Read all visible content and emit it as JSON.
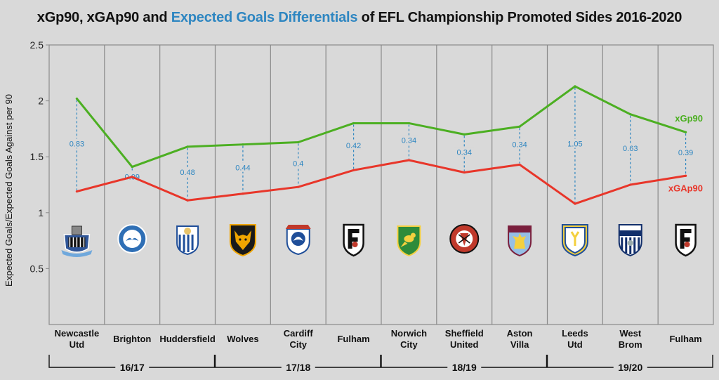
{
  "title": {
    "part1": "xGp90, xGAp90 and ",
    "highlight": "Expected Goals Differentials",
    "part2": " of EFL Championship Promoted Sides 2016-2020"
  },
  "colors": {
    "xg": "#4caf22",
    "xga": "#e8362a",
    "diff": "#2e86c1",
    "grid": "#8a8a8a"
  },
  "chart_data": {
    "type": "line",
    "title": "xGp90, xGAp90 and Expected Goals Differentials of EFL Championship Promoted Sides 2016-2020",
    "ylabel": "Expected Goals/Expected Goals Against per 90",
    "xlabel": "",
    "ylim": [
      0,
      2.5
    ],
    "yticks": [
      "0.5",
      "1",
      "1.5",
      "2",
      "2.5"
    ],
    "grid": true,
    "categories": [
      {
        "line1": "Newcastle",
        "line2": "Utd",
        "crest": "newcastle-crest"
      },
      {
        "line1": "Brighton",
        "line2": "",
        "crest": "brighton-crest"
      },
      {
        "line1": "Huddersfield",
        "line2": "",
        "crest": "huddersfield-crest"
      },
      {
        "line1": "Wolves",
        "line2": "",
        "crest": "wolves-crest"
      },
      {
        "line1": "Cardiff",
        "line2": "City",
        "crest": "cardiff-crest"
      },
      {
        "line1": "Fulham",
        "line2": "",
        "crest": "fulham-crest"
      },
      {
        "line1": "Norwich",
        "line2": "City",
        "crest": "norwich-crest"
      },
      {
        "line1": "Sheffield",
        "line2": "United",
        "crest": "sheffield-united-crest"
      },
      {
        "line1": "Aston",
        "line2": "Villa",
        "crest": "aston-villa-crest"
      },
      {
        "line1": "Leeds",
        "line2": "Utd",
        "crest": "leeds-crest"
      },
      {
        "line1": "West",
        "line2": "Brom",
        "crest": "west-brom-crest"
      },
      {
        "line1": "Fulham",
        "line2": "",
        "crest": "fulham-crest"
      }
    ],
    "groups": [
      {
        "label": "16/17",
        "start": 0,
        "end": 2
      },
      {
        "label": "17/18",
        "start": 3,
        "end": 5
      },
      {
        "label": "18/19",
        "start": 6,
        "end": 8
      },
      {
        "label": "19/20",
        "start": 9,
        "end": 11
      }
    ],
    "series": [
      {
        "name": "xGp90",
        "color": "#4caf22",
        "values": [
          2.02,
          1.41,
          1.59,
          1.61,
          1.63,
          1.8,
          1.8,
          1.7,
          1.77,
          2.13,
          1.88,
          1.72
        ]
      },
      {
        "name": "xGAp90",
        "color": "#e8362a",
        "values": [
          1.19,
          1.32,
          1.11,
          1.17,
          1.23,
          1.38,
          1.47,
          1.36,
          1.43,
          1.08,
          1.25,
          1.33
        ]
      }
    ],
    "differentials": [
      "0.83",
      "0.09",
      "0.48",
      "0.44",
      "0.4",
      "0.42",
      "0.34",
      "0.34",
      "0.34",
      "1.05",
      "0.63",
      "0.39"
    ]
  }
}
